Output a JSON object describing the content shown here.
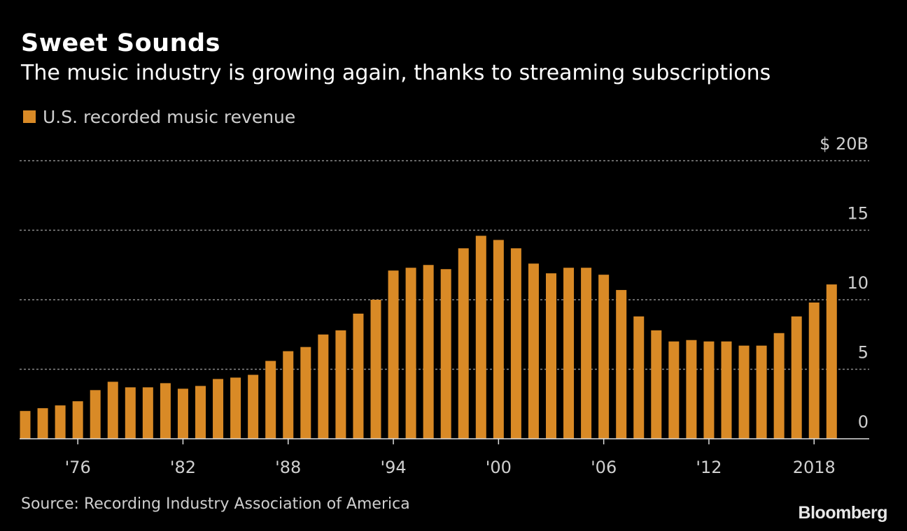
{
  "title": "Sweet Sounds",
  "subtitle": "The music industry is growing again, thanks to streaming subscriptions",
  "source": "Source: Recording Industry Association of America",
  "brand": "Bloomberg",
  "colors": {
    "background": "#000000",
    "bar": "#d98a26",
    "grid": "#8a8a8a",
    "text": "#ffffff",
    "muted_text": "#cfcfcf"
  },
  "chart_data": {
    "type": "bar",
    "title": "Sweet Sounds",
    "subtitle": "The music industry is growing again, thanks to streaming subscriptions",
    "xlabel": "",
    "ylabel": "",
    "ylim": [
      0,
      20
    ],
    "grid": true,
    "legend_position": "top-left",
    "y_ticks": [
      0,
      5,
      10,
      15,
      20
    ],
    "y_tick_labels": [
      "0",
      "5",
      "10",
      "15",
      "$ 20B"
    ],
    "x_ticks": [
      1976,
      1982,
      1988,
      1994,
      2000,
      2006,
      2012,
      2018
    ],
    "x_tick_labels": [
      "'76",
      "'82",
      "'88",
      "'94",
      "'00",
      "'06",
      "'12",
      "2018"
    ],
    "series": [
      {
        "name": "U.S. recorded music revenue",
        "color": "#d98a26",
        "x": [
          1973,
          1974,
          1975,
          1976,
          1977,
          1978,
          1979,
          1980,
          1981,
          1982,
          1983,
          1984,
          1985,
          1986,
          1987,
          1988,
          1989,
          1990,
          1991,
          1992,
          1993,
          1994,
          1995,
          1996,
          1997,
          1998,
          1999,
          2000,
          2001,
          2002,
          2003,
          2004,
          2005,
          2006,
          2007,
          2008,
          2009,
          2010,
          2011,
          2012,
          2013,
          2014,
          2015,
          2016,
          2017,
          2018,
          2019
        ],
        "values": [
          2.0,
          2.2,
          2.4,
          2.7,
          3.5,
          4.1,
          3.7,
          3.7,
          4.0,
          3.6,
          3.8,
          4.3,
          4.4,
          4.6,
          5.6,
          6.3,
          6.6,
          7.5,
          7.8,
          9.0,
          10.0,
          12.1,
          12.3,
          12.5,
          12.2,
          13.7,
          14.6,
          14.3,
          13.7,
          12.6,
          11.9,
          12.3,
          12.3,
          11.8,
          10.7,
          8.8,
          7.8,
          7.0,
          7.1,
          7.0,
          7.0,
          6.7,
          6.7,
          7.6,
          8.8,
          9.8,
          11.1
        ]
      }
    ]
  }
}
